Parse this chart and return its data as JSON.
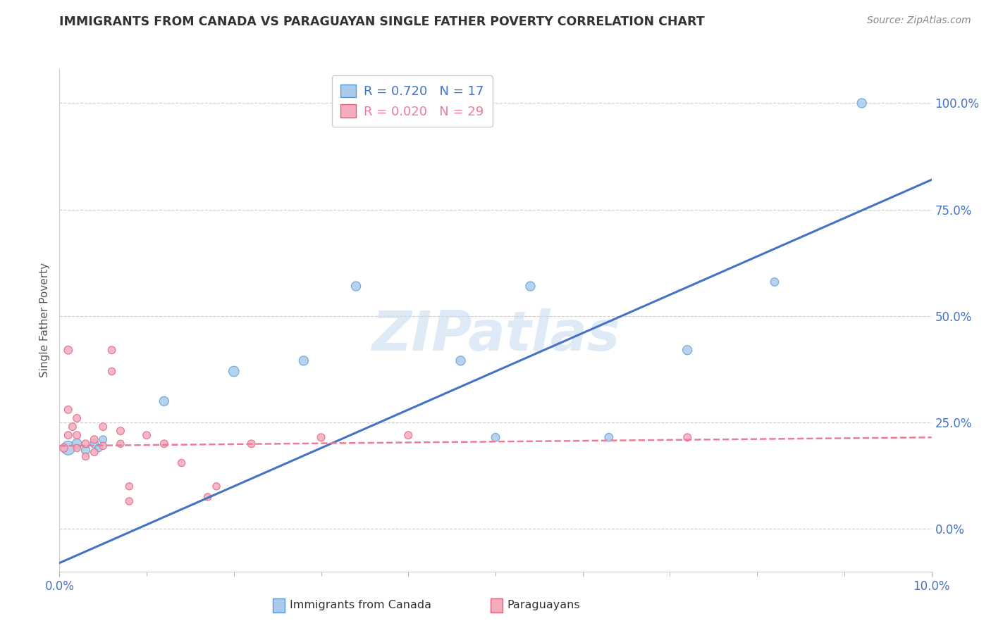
{
  "title": "IMMIGRANTS FROM CANADA VS PARAGUAYAN SINGLE FATHER POVERTY CORRELATION CHART",
  "source": "Source: ZipAtlas.com",
  "ylabel_label": "Single Father Poverty",
  "xlim": [
    0.0,
    0.1
  ],
  "ylim": [
    -0.1,
    1.08
  ],
  "blue_R": 0.72,
  "blue_N": 17,
  "pink_R": 0.02,
  "pink_N": 29,
  "blue_color": "#A8CAEB",
  "blue_edge": "#5B9BD5",
  "pink_color": "#F4ABBE",
  "pink_edge": "#E0607A",
  "trendline_blue": "#4472C4",
  "trendline_pink": "#ED7D96",
  "watermark_text": "ZIPatlas",
  "blue_points_x": [
    0.001,
    0.002,
    0.003,
    0.004,
    0.0045,
    0.005,
    0.012,
    0.02,
    0.028,
    0.034,
    0.046,
    0.05,
    0.054,
    0.063,
    0.072,
    0.082,
    0.092
  ],
  "blue_points_y": [
    0.19,
    0.2,
    0.185,
    0.2,
    0.19,
    0.21,
    0.3,
    0.37,
    0.395,
    0.57,
    0.395,
    0.215,
    0.57,
    0.215,
    0.42,
    0.58,
    1.0
  ],
  "blue_sizes": [
    200,
    100,
    80,
    70,
    60,
    60,
    90,
    110,
    90,
    90,
    90,
    70,
    90,
    70,
    90,
    70,
    90
  ],
  "pink_points_x": [
    0.0005,
    0.001,
    0.001,
    0.001,
    0.0015,
    0.002,
    0.002,
    0.002,
    0.003,
    0.003,
    0.004,
    0.004,
    0.005,
    0.005,
    0.006,
    0.006,
    0.007,
    0.007,
    0.008,
    0.008,
    0.01,
    0.012,
    0.014,
    0.017,
    0.018,
    0.022,
    0.03,
    0.04,
    0.072
  ],
  "pink_points_y": [
    0.19,
    0.42,
    0.28,
    0.22,
    0.24,
    0.26,
    0.22,
    0.19,
    0.2,
    0.17,
    0.21,
    0.18,
    0.24,
    0.195,
    0.42,
    0.37,
    0.23,
    0.2,
    0.1,
    0.065,
    0.22,
    0.2,
    0.155,
    0.075,
    0.1,
    0.2,
    0.215,
    0.22,
    0.215
  ],
  "pink_sizes": [
    70,
    70,
    60,
    60,
    60,
    60,
    60,
    55,
    60,
    55,
    60,
    55,
    60,
    55,
    60,
    55,
    60,
    55,
    55,
    55,
    60,
    60,
    55,
    55,
    55,
    60,
    60,
    60,
    60
  ],
  "blue_trend_x0": 0.0,
  "blue_trend_x1": 0.1,
  "blue_trend_y0": -0.08,
  "blue_trend_y1": 0.82,
  "pink_trend_x0": 0.0,
  "pink_trend_x1": 0.1,
  "pink_trend_y0": 0.195,
  "pink_trend_y1": 0.215,
  "grid_color": "#CCCCCC",
  "grid_style": "--",
  "background_color": "#FFFFFF",
  "title_color": "#333333",
  "tick_color": "#4472C4",
  "ytick_vals": [
    0.0,
    0.25,
    0.5,
    0.75,
    1.0
  ],
  "ytick_labels": [
    "0.0%",
    "25.0%",
    "50.0%",
    "75.0%",
    "100.0%"
  ]
}
